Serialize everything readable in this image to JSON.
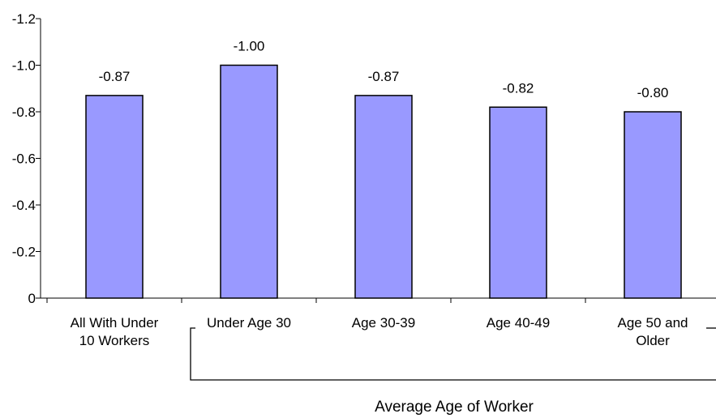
{
  "chart_data": {
    "type": "bar",
    "categories": [
      [
        "All With Under",
        "10 Workers"
      ],
      [
        "Under Age 30"
      ],
      [
        "Age 30-39"
      ],
      [
        "Age 40-49"
      ],
      [
        "Age 50 and",
        "Older"
      ]
    ],
    "values": [
      -0.87,
      -1.0,
      -0.87,
      -0.82,
      -0.8
    ],
    "data_labels": [
      "-0.87",
      "-1.00",
      "-0.87",
      "-0.82",
      "-0.80"
    ],
    "y_ticks": [
      0,
      -0.2,
      -0.4,
      -0.6,
      -0.8,
      -1.0,
      -1.2
    ],
    "y_tick_labels": [
      "0",
      "-0.2",
      "-0.4",
      "-0.6",
      "-0.8",
      "-1.0",
      "-1.2"
    ],
    "ylim": [
      0,
      -1.2
    ],
    "y_axis_reversed": true,
    "group_label": "Average Age of Worker",
    "bar_color": "#9999ff",
    "grid": false,
    "legend": "none"
  }
}
